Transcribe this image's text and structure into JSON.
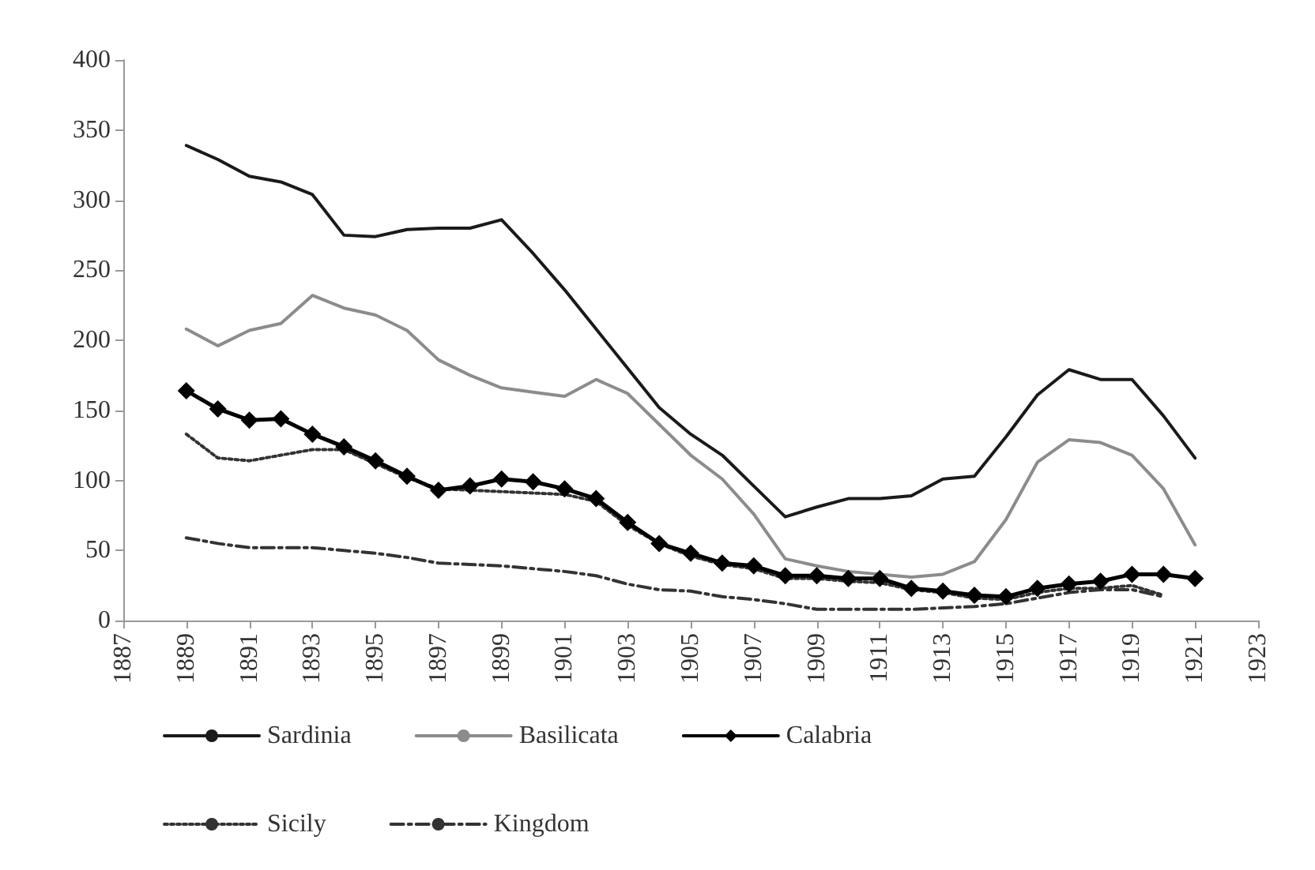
{
  "chart_data": {
    "type": "line",
    "x": [
      1889,
      1890,
      1891,
      1892,
      1893,
      1894,
      1895,
      1896,
      1897,
      1898,
      1899,
      1900,
      1901,
      1902,
      1903,
      1904,
      1905,
      1906,
      1907,
      1908,
      1909,
      1910,
      1911,
      1912,
      1913,
      1914,
      1915,
      1916,
      1917,
      1918,
      1919,
      1920,
      1921
    ],
    "series": [
      {
        "name": "Sardinia",
        "color": "#1a1a1a",
        "line_style": "solid",
        "marker": "none",
        "values": [
          339,
          329,
          317,
          313,
          304,
          275,
          274,
          279,
          280,
          280,
          286,
          262,
          236,
          208,
          180,
          152,
          133,
          118,
          96,
          74,
          81,
          87,
          87,
          89,
          101,
          103,
          131,
          161,
          179,
          172,
          172,
          146,
          116
        ]
      },
      {
        "name": "Basilicata",
        "color": "#8c8c8c",
        "line_style": "solid",
        "marker": "none",
        "values": [
          208,
          196,
          207,
          212,
          232,
          223,
          218,
          207,
          186,
          175,
          166,
          163,
          160,
          172,
          162,
          140,
          118,
          101,
          76,
          44,
          39,
          35,
          33,
          31,
          33,
          42,
          72,
          113,
          129,
          127,
          118,
          94,
          54
        ]
      },
      {
        "name": "Calabria",
        "color": "#000000",
        "line_style": "solid",
        "marker": "diamond",
        "values": [
          164,
          151,
          143,
          144,
          133,
          124,
          114,
          103,
          93,
          96,
          101,
          99,
          94,
          87,
          70,
          55,
          48,
          41,
          39,
          32,
          32,
          30,
          30,
          23,
          21,
          18,
          17,
          23,
          26,
          28,
          33,
          33,
          30
        ]
      },
      {
        "name": "Sicily",
        "color": "#333333",
        "line_style": "dotted",
        "marker": "none",
        "values": [
          133,
          116,
          114,
          118,
          122,
          122,
          112,
          102,
          94,
          93,
          92,
          91,
          90,
          85,
          68,
          55,
          46,
          40,
          37,
          30,
          30,
          28,
          27,
          22,
          20,
          16,
          15,
          20,
          23,
          23,
          25,
          18,
          null
        ]
      },
      {
        "name": "Kingdom",
        "color": "#333333",
        "line_style": "dashdot",
        "marker": "none",
        "values": [
          59,
          55,
          52,
          52,
          52,
          50,
          48,
          45,
          41,
          40,
          39,
          37,
          35,
          32,
          26,
          22,
          21,
          17,
          15,
          12,
          8,
          8,
          8,
          8,
          9,
          10,
          12,
          16,
          20,
          22,
          22,
          17,
          null
        ]
      }
    ],
    "xlim": [
      1887,
      1923
    ],
    "xticks": [
      1887,
      1889,
      1891,
      1893,
      1895,
      1897,
      1899,
      1901,
      1903,
      1905,
      1907,
      1909,
      1911,
      1913,
      1915,
      1917,
      1919,
      1921,
      1923
    ],
    "ylim": [
      0,
      400
    ],
    "yticks": [
      0,
      50,
      100,
      150,
      200,
      250,
      300,
      350,
      400
    ],
    "grid": false,
    "legend": "bottom"
  }
}
